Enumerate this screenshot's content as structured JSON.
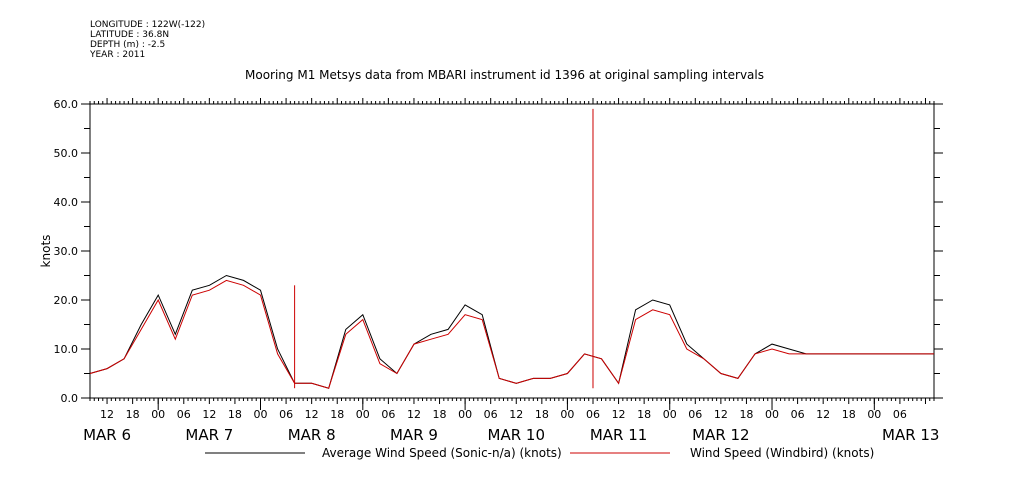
{
  "header": {
    "lines": [
      "LONGITUDE : 122W(-122)",
      "LATITUDE : 36.8N",
      "DEPTH (m) : -2.5",
      "YEAR : 2011"
    ]
  },
  "chart_data": {
    "type": "line",
    "title": "Mooring M1 Metsys data from MBARI instrument id 1396 at original sampling intervals",
    "ylabel": "knots",
    "ylim": [
      0,
      60
    ],
    "y_ticks": [
      0,
      10,
      20,
      30,
      40,
      50,
      60
    ],
    "xlim_hours": [
      -16,
      182
    ],
    "x_hour_ticks": [
      "12",
      "18",
      "00",
      "06",
      "12",
      "18",
      "00",
      "06",
      "12",
      "18",
      "00",
      "06",
      "12",
      "18",
      "00",
      "06",
      "12",
      "18",
      "00",
      "06",
      "12",
      "18",
      "00",
      "06",
      "12",
      "18",
      "00",
      "06",
      "12",
      "18",
      "00",
      "06"
    ],
    "day_labels": [
      "MAR  6",
      "MAR  7",
      "MAR  8",
      "MAR  9",
      "MAR 10",
      "MAR 11",
      "MAR 12",
      "MAR 13"
    ],
    "colors": {
      "sonic": "#000000",
      "windbird": "#cc0000"
    },
    "series": [
      {
        "name": "Average Wind Speed (Sonic-n/a) (knots)",
        "color": "#000000",
        "x": [
          -16,
          -12,
          -8,
          -4,
          0,
          4,
          8,
          12,
          16,
          20,
          24,
          28,
          32,
          36,
          40,
          44,
          48,
          52,
          56,
          60,
          64,
          68,
          72,
          76,
          80,
          84,
          88,
          92,
          96,
          100,
          104,
          108,
          112,
          116,
          120,
          124,
          128,
          132,
          136,
          140,
          144,
          148,
          152,
          156,
          160,
          164,
          168,
          172,
          176,
          180,
          182
        ],
        "y": [
          5,
          6,
          8,
          15,
          21,
          13,
          22,
          23,
          25,
          24,
          22,
          10,
          3,
          3,
          2,
          14,
          17,
          8,
          5,
          11,
          13,
          14,
          19,
          17,
          4,
          3,
          4,
          4,
          5,
          9,
          8,
          3,
          18,
          20,
          19,
          11,
          8,
          5,
          4,
          9,
          11,
          10,
          9,
          9,
          9,
          9,
          9,
          9,
          9,
          9,
          9
        ]
      },
      {
        "name": "Wind Speed (Windbird) (knots)",
        "color": "#cc0000",
        "x": [
          -16,
          -12,
          -8,
          -4,
          0,
          4,
          8,
          12,
          16,
          20,
          24,
          28,
          32,
          36,
          40,
          44,
          48,
          52,
          56,
          60,
          64,
          68,
          72,
          76,
          80,
          84,
          88,
          92,
          96,
          100,
          104,
          108,
          112,
          116,
          120,
          124,
          128,
          132,
          136,
          140,
          144,
          148,
          152,
          156,
          160,
          164,
          168,
          172,
          176,
          180,
          182
        ],
        "y": [
          5,
          6,
          8,
          14,
          20,
          12,
          21,
          22,
          24,
          23,
          21,
          9,
          3,
          3,
          2,
          13,
          16,
          7,
          5,
          11,
          12,
          13,
          17,
          16,
          4,
          3,
          4,
          4,
          5,
          9,
          8,
          3,
          16,
          18,
          17,
          10,
          8,
          5,
          4,
          9,
          10,
          9,
          9,
          9,
          9,
          9,
          9,
          9,
          9,
          9,
          9
        ]
      }
    ],
    "spikes": [
      {
        "series": "Wind Speed (Windbird) (knots)",
        "x": 32,
        "y": 23
      },
      {
        "series": "Wind Speed (Windbird) (knots)",
        "x": 102,
        "y": 59
      }
    ]
  }
}
